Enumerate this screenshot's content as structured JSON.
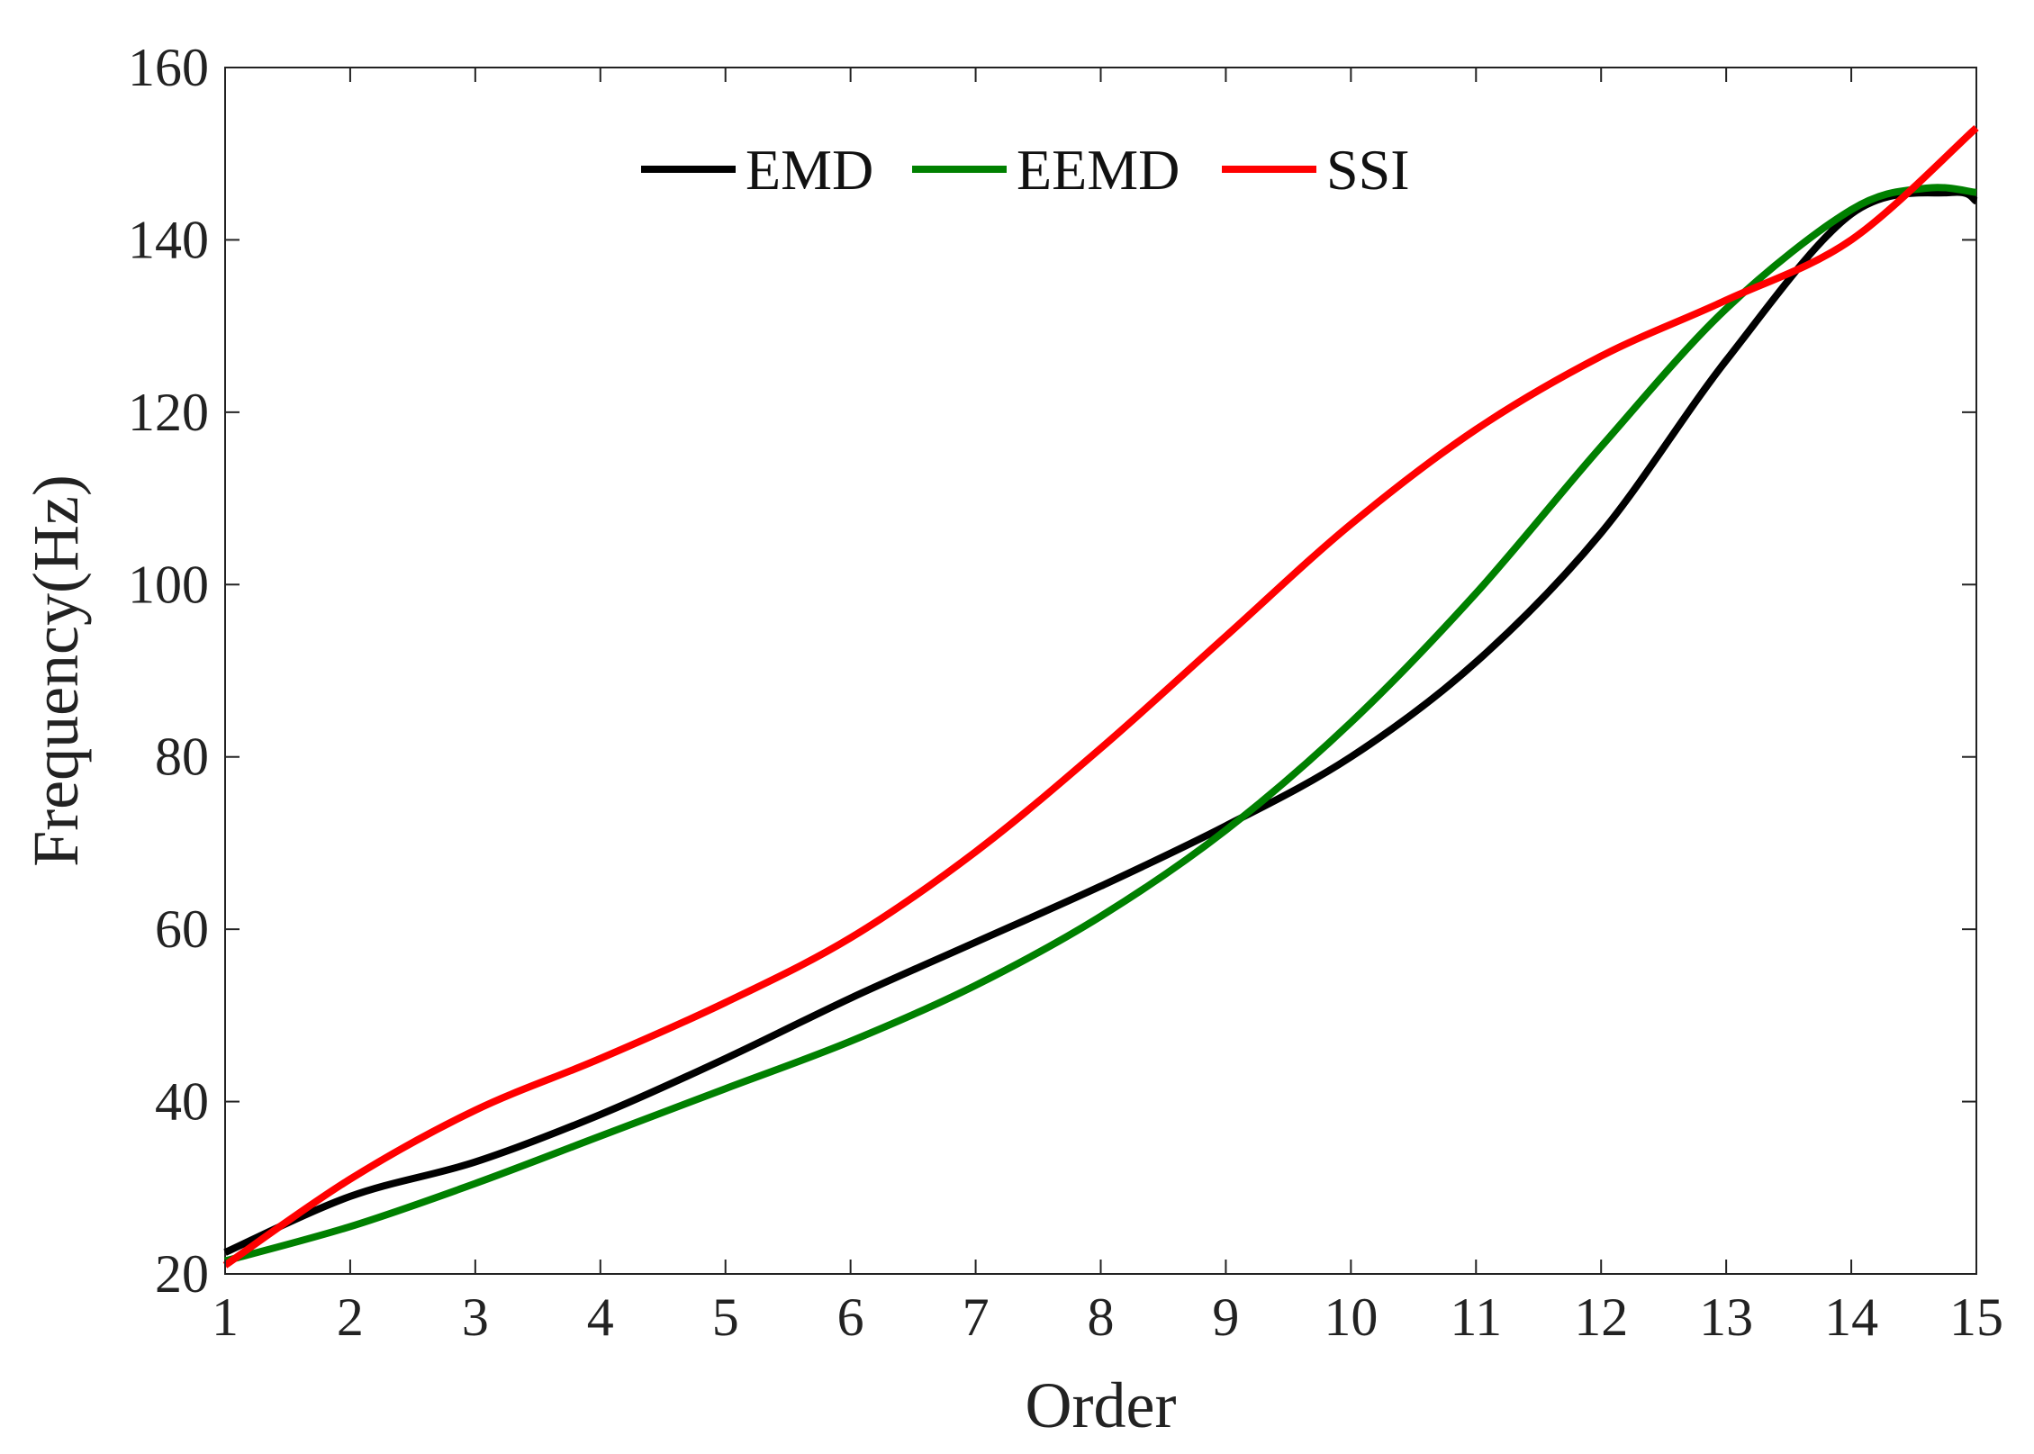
{
  "chart_data": {
    "type": "line",
    "xlabel": "Order",
    "ylabel": "Frequency(Hz)",
    "xlim": [
      1,
      15
    ],
    "ylim": [
      20,
      160
    ],
    "xticks": [
      1,
      2,
      3,
      4,
      5,
      6,
      7,
      8,
      9,
      10,
      11,
      12,
      13,
      14,
      15
    ],
    "yticks": [
      20,
      40,
      60,
      80,
      100,
      120,
      140,
      160
    ],
    "grid": false,
    "legend_position": "top-center",
    "x": [
      1,
      2,
      3,
      4,
      5,
      6,
      7,
      8,
      9,
      10,
      11,
      12,
      13,
      14,
      15
    ],
    "series": [
      {
        "name": "EMD",
        "color": "#000000",
        "values": [
          22.5,
          29,
          33,
          38.5,
          45,
          52,
          58.5,
          65,
          72,
          80,
          91,
          106,
          126,
          143,
          144.5
        ],
        "extra_points": [
          [
            14.8,
            145.5
          ]
        ]
      },
      {
        "name": "EEMD",
        "color": "#008000",
        "values": [
          21.5,
          25.5,
          30.5,
          36,
          41.5,
          47,
          53.5,
          61.5,
          71.5,
          84,
          99,
          116,
          132,
          143.5,
          145.5
        ],
        "extra_points": [
          [
            14.6,
            146
          ]
        ]
      },
      {
        "name": "SSI",
        "color": "#ff0000",
        "values": [
          21,
          31,
          39,
          45,
          51.5,
          59,
          69,
          81,
          94,
          107,
          118,
          126.5,
          133,
          140,
          153
        ]
      }
    ]
  }
}
